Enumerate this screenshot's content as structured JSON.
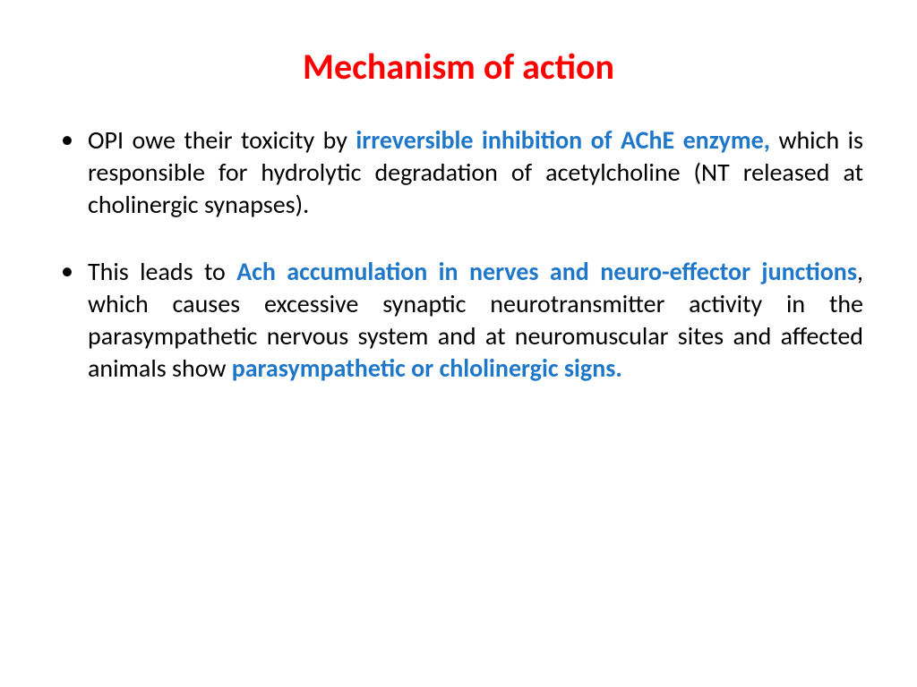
{
  "slide": {
    "title": "Mechanism of action",
    "title_color": "#ff0000",
    "title_fontsize": 40,
    "body_fontsize": 28,
    "body_lineheight": 1.28,
    "body_color": "#000000",
    "highlight_color": "#1f77c9",
    "background_color": "#ffffff",
    "bullets": [
      {
        "segments": [
          {
            "text": "OPI owe their toxicity by ",
            "hl": false
          },
          {
            "text": "irreversible inhibition of AChE enzyme,",
            "hl": true
          },
          {
            "text": " which is responsible for hydrolytic degradation of acetylcholine (NT released at cholinergic synapses).",
            "hl": false
          }
        ]
      },
      {
        "segments": [
          {
            "text": "This leads to ",
            "hl": false
          },
          {
            "text": "Ach accumulation in nerves and neuro-effector junctions",
            "hl": true
          },
          {
            "text": ", which causes excessive synaptic neurotransmitter activity in the parasympathetic nervous system and at neuromuscular sites and affected animals show ",
            "hl": false
          },
          {
            "text": "parasympathetic or chlolinergic signs.",
            "hl": true
          }
        ]
      }
    ]
  }
}
